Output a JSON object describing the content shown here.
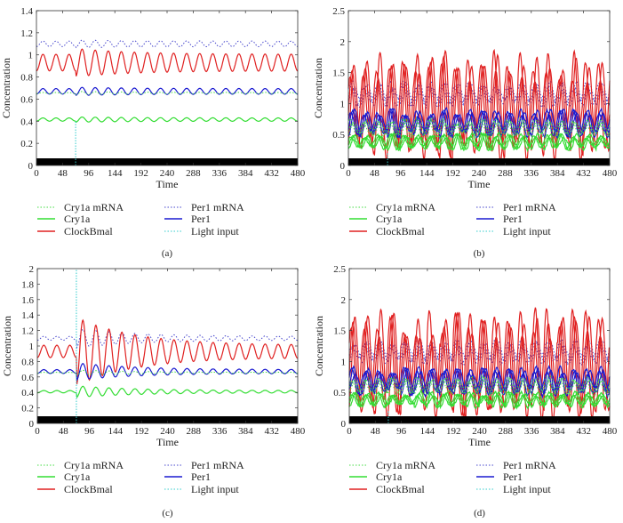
{
  "colors": {
    "Cry1a mRNA": "#44dd44",
    "Cry1a": "#33dd33",
    "ClockBmal": "#e02020",
    "Per1 mRNA": "#4444cc",
    "Per1": "#1a1ad0",
    "Light input": "#33cccc"
  },
  "chart_data": [
    {
      "type": "line",
      "caption": "(a)",
      "xlabel": "Time",
      "ylabel": "Concentration",
      "xlim": [
        0,
        480
      ],
      "ylim": [
        0,
        1.4
      ],
      "xticks": [
        "0",
        "48",
        "96",
        "144",
        "192",
        "240",
        "288",
        "336",
        "384",
        "432",
        "480"
      ],
      "yticks": [
        "0",
        "0.2",
        "0.4",
        "0.6",
        "0.8",
        "1",
        "1.2",
        "1.4"
      ],
      "light_input_time": 72,
      "light_input_top": 0.4,
      "legend": [
        "Cry1a mRNA",
        "Per1 mRNA",
        "Cry1a",
        "Per1",
        "ClockBmal",
        "Light input"
      ],
      "period": 24,
      "cells": 1,
      "series": [
        {
          "name": "Per1 mRNA",
          "mean": 1.1,
          "amplitude": 0.025,
          "kick": 0.4,
          "style": "dotted"
        },
        {
          "name": "ClockBmal",
          "mean": 0.93,
          "amplitude": 0.075,
          "kick": 0.7,
          "style": "solid"
        },
        {
          "name": "Per1",
          "mean": 0.67,
          "amplitude": 0.025,
          "kick": 0.5,
          "style": "solid"
        },
        {
          "name": "Cry1a mRNA",
          "mean": 0.655,
          "amplitude": 0.005,
          "kick": 2,
          "style": "dotted"
        },
        {
          "name": "Cry1a",
          "mean": 0.415,
          "amplitude": 0.015,
          "kick": 0.6,
          "style": "solid"
        }
      ]
    },
    {
      "type": "line",
      "caption": "(b)",
      "xlabel": "Time",
      "ylabel": "Concentration",
      "xlim": [
        0,
        480
      ],
      "ylim": [
        0,
        2.5
      ],
      "xticks": [
        "0",
        "48",
        "96",
        "144",
        "192",
        "240",
        "288",
        "336",
        "384",
        "432",
        "480"
      ],
      "yticks": [
        "0",
        "0.5",
        "1",
        "1.5",
        "2",
        "2.5"
      ],
      "light_input_time": 72,
      "light_input_top": 0.2,
      "legend": [
        "Cry1a mRNA",
        "Per1 mRNA",
        "Cry1a",
        "Per1",
        "ClockBmal",
        "Light input"
      ],
      "period": 24,
      "cells": 3,
      "series": [
        {
          "name": "Per1 mRNA",
          "mean": 1.15,
          "amplitude": 0.15,
          "kick": 0,
          "style": "dotted"
        },
        {
          "name": "ClockBmal",
          "mean": 0.95,
          "amplitude": 0.7,
          "kick": 0,
          "style": "solid"
        },
        {
          "name": "Per1",
          "mean": 0.68,
          "amplitude": 0.18,
          "kick": 0,
          "style": "solid"
        },
        {
          "name": "Cry1a mRNA",
          "mean": 0.6,
          "amplitude": 0.12,
          "kick": 0,
          "style": "dotted"
        },
        {
          "name": "Cry1a",
          "mean": 0.38,
          "amplitude": 0.1,
          "kick": 0,
          "style": "solid"
        }
      ]
    },
    {
      "type": "line",
      "caption": "(c)",
      "xlabel": "Time",
      "ylabel": "Concentration",
      "xlim": [
        0,
        480
      ],
      "ylim": [
        0,
        2
      ],
      "xticks": [
        "0",
        "48",
        "96",
        "144",
        "192",
        "240",
        "288",
        "336",
        "384",
        "432",
        "480"
      ],
      "yticks": [
        "0",
        "0.2",
        "0.4",
        "0.6",
        "0.8",
        "1",
        "1.2",
        "1.4",
        "1.6",
        "1.8",
        "2"
      ],
      "light_input_time": 72,
      "light_input_top": 2,
      "legend": [
        "Cry1a mRNA",
        "Per1 mRNA",
        "Cry1a",
        "Per1",
        "ClockBmal",
        "Light input"
      ],
      "period": 24,
      "cells": 1,
      "series": [
        {
          "name": "Per1 mRNA",
          "mean": 1.1,
          "amplitude": 0.025,
          "kick": 4,
          "style": "dotted"
        },
        {
          "name": "ClockBmal",
          "mean": 0.93,
          "amplitude": 0.08,
          "kick": 4.5,
          "style": "solid"
        },
        {
          "name": "Per1",
          "mean": 0.67,
          "amplitude": 0.025,
          "kick": 3.5,
          "style": "solid"
        },
        {
          "name": "Cry1a mRNA",
          "mean": 0.655,
          "amplitude": 0.005,
          "kick": 6,
          "style": "dotted"
        },
        {
          "name": "Cry1a",
          "mean": 0.41,
          "amplitude": 0.015,
          "kick": 4,
          "style": "solid"
        }
      ]
    },
    {
      "type": "line",
      "caption": "(d)",
      "xlabel": "Time",
      "ylabel": "Concentration",
      "xlim": [
        0,
        480
      ],
      "ylim": [
        0,
        2.5
      ],
      "xticks": [
        "0",
        "48",
        "96",
        "144",
        "192",
        "240",
        "288",
        "336",
        "384",
        "432",
        "480"
      ],
      "yticks": [
        "0",
        "0.5",
        "1",
        "1.5",
        "2",
        "2.5"
      ],
      "light_input_time": 72,
      "light_input_top": 0.2,
      "legend": [
        "Cry1a mRNA",
        "Per1 mRNA",
        "Cry1a",
        "Per1",
        "ClockBmal",
        "Light input"
      ],
      "period": 24,
      "cells": 3,
      "series": [
        {
          "name": "Per1 mRNA",
          "mean": 1.15,
          "amplitude": 0.15,
          "kick": 0,
          "style": "dotted"
        },
        {
          "name": "ClockBmal",
          "mean": 0.95,
          "amplitude": 0.7,
          "kick": 0,
          "style": "solid"
        },
        {
          "name": "Per1",
          "mean": 0.68,
          "amplitude": 0.18,
          "kick": 0,
          "style": "solid"
        },
        {
          "name": "Cry1a mRNA",
          "mean": 0.6,
          "amplitude": 0.12,
          "kick": 0,
          "style": "dotted"
        },
        {
          "name": "Cry1a",
          "mean": 0.38,
          "amplitude": 0.1,
          "kick": 0,
          "style": "solid"
        }
      ]
    }
  ]
}
